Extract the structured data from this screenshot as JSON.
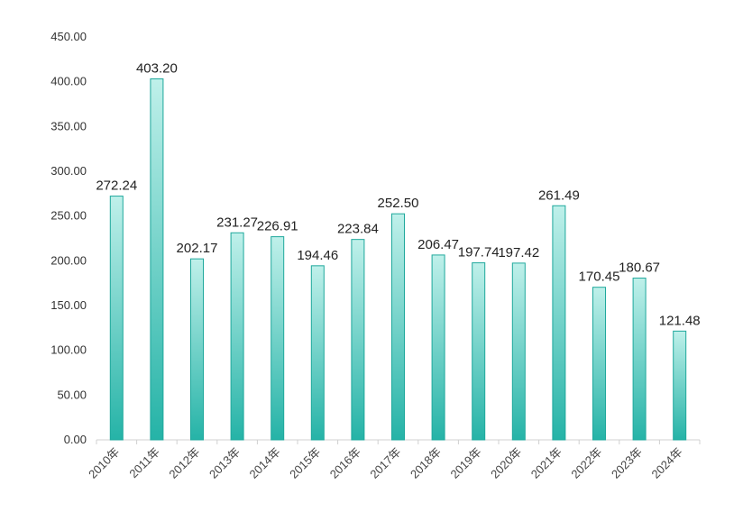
{
  "chart_data": {
    "type": "bar",
    "title": "",
    "xlabel": "",
    "ylabel": "",
    "categories": [
      "2010年",
      "2011年",
      "2012年",
      "2013年",
      "2014年",
      "2015年",
      "2016年",
      "2017年",
      "2018年",
      "2019年",
      "2020年",
      "2021年",
      "2022年",
      "2023年",
      "2024年"
    ],
    "values": [
      272.24,
      403.2,
      202.17,
      231.27,
      226.91,
      194.46,
      223.84,
      252.5,
      206.47,
      197.74,
      197.42,
      261.49,
      170.45,
      180.67,
      121.48
    ],
    "value_labels": [
      "272.24",
      "403.20",
      "202.17",
      "231.27",
      "226.91",
      "194.46",
      "223.84",
      "252.50",
      "206.47",
      "197.74",
      "197.42",
      "261.49",
      "170.45",
      "180.67",
      "121.48"
    ],
    "ylim": [
      0,
      450
    ],
    "yticks": [
      "0.00",
      "50.00",
      "100.00",
      "150.00",
      "200.00",
      "250.00",
      "300.00",
      "350.00",
      "400.00",
      "450.00"
    ],
    "grid": false,
    "legend": "none",
    "colors": {
      "bar_top": "#bff0ea",
      "bar_bottom": "#25b3a7",
      "bar_edge": "#1fa89c"
    }
  }
}
